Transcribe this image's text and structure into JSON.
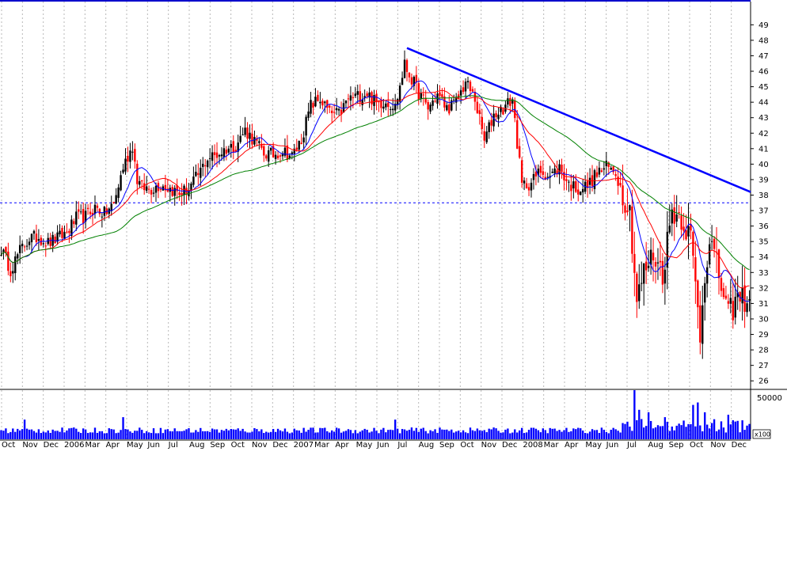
{
  "chart_data": {
    "type": "candlestick",
    "price_axis": {
      "ylim": [
        25.5,
        50.5
      ],
      "ticks": [
        26,
        27,
        28,
        29,
        30,
        31,
        32,
        33,
        34,
        35,
        36,
        37,
        38,
        39,
        40,
        41,
        42,
        43,
        44,
        45,
        46,
        47,
        48,
        49
      ]
    },
    "volume_axis": {
      "tick_label": "50000",
      "unit_label": "x100"
    },
    "x_months": [
      "Oct",
      "Nov",
      "Dec",
      "2006",
      "Mar",
      "Apr",
      "May",
      "Jun",
      "Jul",
      "Aug",
      "Sep",
      "Oct",
      "Nov",
      "Dec",
      "2007",
      "Mar",
      "Apr",
      "May",
      "Jun",
      "Jul",
      "Aug",
      "Sep",
      "Oct",
      "Nov",
      "Dec",
      "2008",
      "Mar",
      "Apr",
      "May",
      "Jun",
      "Jul",
      "Aug",
      "Sep",
      "Oct",
      "Nov",
      "Dec"
    ],
    "price_key_points": [
      [
        0,
        34.5
      ],
      [
        4,
        33.2
      ],
      [
        8,
        34.4
      ],
      [
        12,
        35.2
      ],
      [
        16,
        35.3
      ],
      [
        20,
        34.9
      ],
      [
        24,
        35.2
      ],
      [
        28,
        35.6
      ],
      [
        32,
        36.5
      ],
      [
        36,
        36.6
      ],
      [
        40,
        37.2
      ],
      [
        44,
        36.8
      ],
      [
        48,
        37.4
      ],
      [
        52,
        39.8
      ],
      [
        56,
        41.2
      ],
      [
        58,
        39.0
      ],
      [
        60,
        38.5
      ],
      [
        64,
        38.4
      ],
      [
        68,
        38.7
      ],
      [
        72,
        38.4
      ],
      [
        76,
        38.1
      ],
      [
        80,
        38.4
      ],
      [
        84,
        39.3
      ],
      [
        88,
        40.4
      ],
      [
        92,
        40.6
      ],
      [
        96,
        41.0
      ],
      [
        100,
        41.2
      ],
      [
        104,
        42.2
      ],
      [
        108,
        41.5
      ],
      [
        112,
        40.7
      ],
      [
        116,
        40.6
      ],
      [
        120,
        40.9
      ],
      [
        124,
        40.5
      ],
      [
        128,
        41.6
      ],
      [
        132,
        43.8
      ],
      [
        136,
        44.2
      ],
      [
        140,
        43.3
      ],
      [
        144,
        43.2
      ],
      [
        148,
        44.2
      ],
      [
        152,
        44.4
      ],
      [
        156,
        44.6
      ],
      [
        160,
        43.9
      ],
      [
        164,
        44.1
      ],
      [
        168,
        43.7
      ],
      [
        172,
        46.4
      ],
      [
        174,
        45.8
      ],
      [
        178,
        44.6
      ],
      [
        182,
        43.6
      ],
      [
        186,
        44.5
      ],
      [
        190,
        43.6
      ],
      [
        194,
        44.0
      ],
      [
        198,
        45.3
      ],
      [
        202,
        44.2
      ],
      [
        206,
        41.5
      ],
      [
        210,
        43.2
      ],
      [
        214,
        43.6
      ],
      [
        218,
        44.2
      ],
      [
        222,
        38.6
      ],
      [
        226,
        38.8
      ],
      [
        230,
        39.6
      ],
      [
        234,
        39.2
      ],
      [
        238,
        39.8
      ],
      [
        242,
        38.7
      ],
      [
        246,
        38.4
      ],
      [
        250,
        38.6
      ],
      [
        254,
        39.4
      ],
      [
        258,
        39.8
      ],
      [
        262,
        39.5
      ],
      [
        264,
        38.5
      ],
      [
        268,
        37.0
      ],
      [
        271,
        31.2
      ],
      [
        274,
        33.0
      ],
      [
        278,
        34.2
      ],
      [
        282,
        33.0
      ],
      [
        286,
        37.0
      ],
      [
        290,
        36.6
      ],
      [
        294,
        35.2
      ],
      [
        296,
        32.2
      ],
      [
        298,
        29.0
      ],
      [
        300,
        33.0
      ],
      [
        302,
        35.3
      ],
      [
        306,
        32.8
      ],
      [
        310,
        30.2
      ],
      [
        314,
        31.3
      ]
    ],
    "moving_averages": [
      {
        "color": "#0000ff",
        "period": 10
      },
      {
        "color": "#ff0000",
        "period": 20
      },
      {
        "color": "#008000",
        "period": 50
      }
    ],
    "horizontal_line": {
      "value": 37.5,
      "color": "#0000ff",
      "style": "dashed"
    },
    "trendline": {
      "from": [
        173,
        47.5
      ],
      "to": [
        320,
        38.2
      ],
      "color": "#0000ff"
    },
    "volume_spikes": {
      "10": 0.4,
      "52": 0.45,
      "168": 0.4,
      "270": 1.0,
      "272": 0.6,
      "276": 0.55,
      "283": 0.45,
      "295": 0.7,
      "297": 0.75,
      "300": 0.55,
      "310": 0.5
    }
  }
}
